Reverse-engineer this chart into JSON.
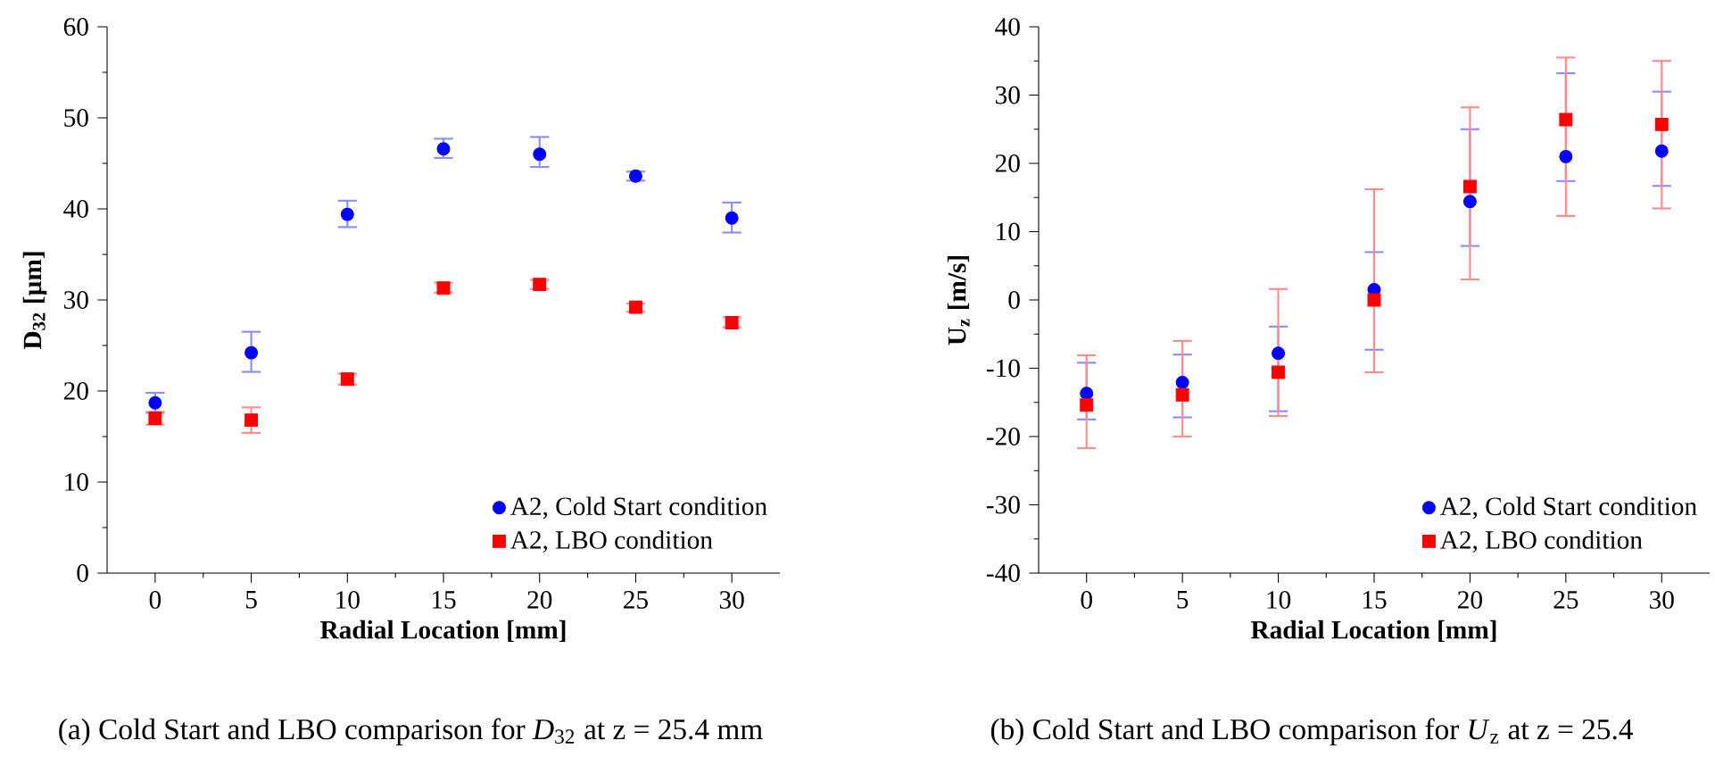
{
  "chart_data": [
    {
      "type": "scatter",
      "xlabel": "Radial Location [mm]",
      "ylabel": "D$_{32}$ [µm]",
      "xlim": [
        -2.5,
        32.5
      ],
      "ylim": [
        0,
        60
      ],
      "xticks": [
        0,
        5,
        10,
        15,
        20,
        25,
        30
      ],
      "yticks": [
        0,
        10,
        20,
        30,
        40,
        50,
        60
      ],
      "legend": "bottom right",
      "grid": false,
      "x": [
        0,
        5,
        10,
        15,
        20,
        25,
        30
      ],
      "series": [
        {
          "name": "A2,  Cold Start condition",
          "color": "#0000ff",
          "marker": "circle",
          "values": [
            18.7,
            24.2,
            39.4,
            46.6,
            46.0,
            43.6,
            39.0
          ],
          "errors": [
            [
              17.6,
              19.8
            ],
            [
              22.1,
              26.5
            ],
            [
              38.0,
              40.9
            ],
            [
              45.6,
              47.7
            ],
            [
              44.6,
              47.9
            ],
            [
              43.1,
              44.1
            ],
            [
              37.4,
              40.7
            ]
          ]
        },
        {
          "name": "A2,  LBO condition",
          "color": "#ff0000",
          "marker": "square",
          "values": [
            17.0,
            16.8,
            21.3,
            31.3,
            31.7,
            29.2,
            27.5
          ],
          "errors": [
            [
              16.3,
              17.7
            ],
            [
              15.4,
              18.2
            ],
            [
              20.7,
              21.9
            ],
            [
              30.8,
              31.9
            ],
            [
              31.2,
              32.2
            ],
            [
              28.7,
              29.6
            ],
            [
              27.0,
              28.1
            ]
          ]
        }
      ],
      "annotations": [
        "(a)  Cold Start and LBO comparison for *D*$_{32}$ at z = 25.4 mm"
      ]
    },
    {
      "type": "scatter",
      "xlabel": "Radial Location [mm]",
      "ylabel": "U$_{z}$ [m/s]",
      "xlim": [
        -2.5,
        32.5
      ],
      "ylim": [
        -40,
        40
      ],
      "xticks": [
        0,
        5,
        10,
        15,
        20,
        25,
        30
      ],
      "yticks": [
        -40,
        -30,
        -20,
        -10,
        0,
        10,
        20,
        30,
        40
      ],
      "legend": "bottom right",
      "grid": false,
      "x": [
        0,
        5,
        10,
        15,
        20,
        25,
        30
      ],
      "series": [
        {
          "name": "A2,  Cold Start condition",
          "color": "#0000ff",
          "marker": "circle",
          "values": [
            -13.7,
            -12.1,
            -7.8,
            1.5,
            14.4,
            21.0,
            21.8
          ],
          "errors": [
            [
              -17.5,
              -9.2
            ],
            [
              -17.2,
              -8.0
            ],
            [
              -16.3,
              -3.9
            ],
            [
              -7.3,
              7.0
            ],
            [
              7.9,
              25.0
            ],
            [
              17.4,
              33.2
            ],
            [
              16.7,
              30.5
            ]
          ]
        },
        {
          "name": "A2,  LBO condition",
          "color": "#ff0000",
          "marker": "square",
          "values": [
            -15.4,
            -13.9,
            -10.6,
            0,
            16.6,
            26.4,
            25.7
          ],
          "errors": [
            [
              -21.7,
              -8.1
            ],
            [
              -20.0,
              -6.0
            ],
            [
              -17.0,
              1.6
            ],
            [
              -10.6,
              16.2
            ],
            [
              3.0,
              28.2
            ],
            [
              12.3,
              35.5
            ],
            [
              13.4,
              35.0
            ]
          ]
        }
      ],
      "annotations": [
        "(b)  Cold Start and LBO comparison for *U*$_{z}$ at z = 25.4"
      ]
    }
  ]
}
